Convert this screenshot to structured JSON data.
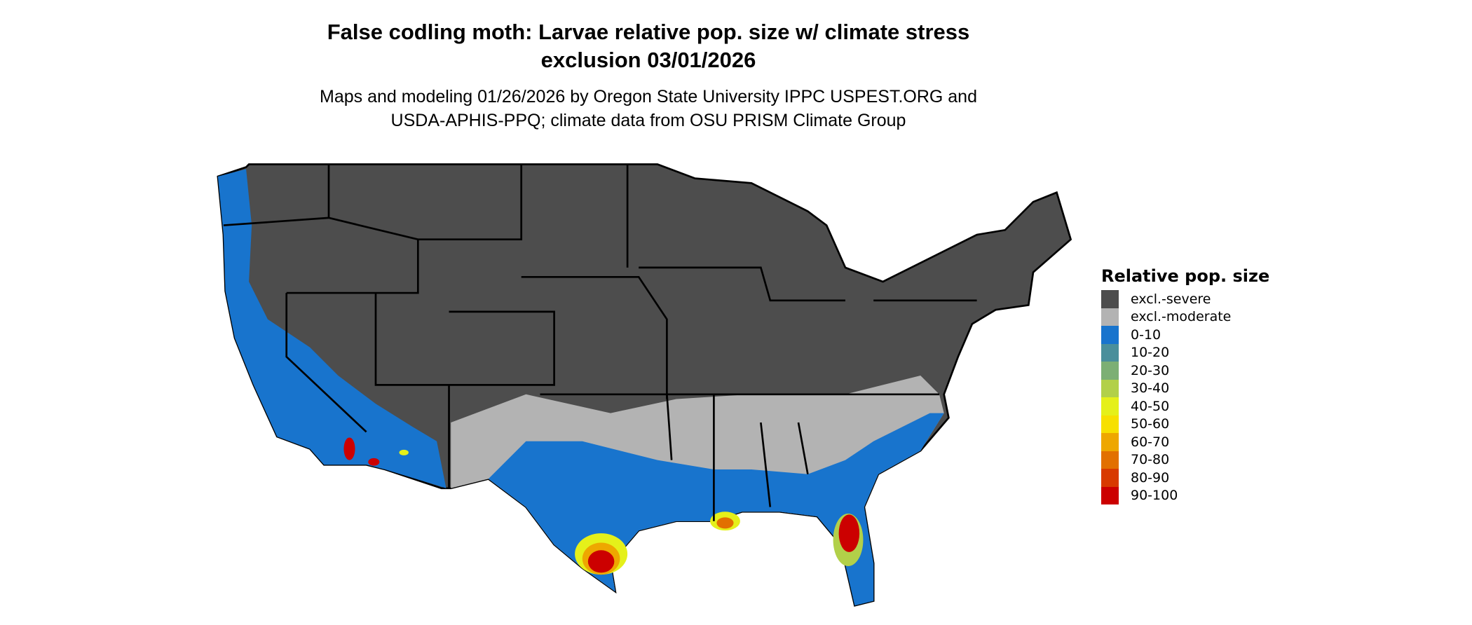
{
  "title_line1": "False codling moth: Larvae relative pop. size w/ climate stress",
  "title_line2": "exclusion 03/01/2026",
  "subtitle_line1": "Maps and modeling 01/26/2026 by Oregon State University IPPC USPEST.ORG and",
  "subtitle_line2": "USDA-APHIS-PPQ; climate data from OSU PRISM Climate Group",
  "chart_data": {
    "type": "map",
    "region": "contiguous United States",
    "legend": {
      "title": "Relative pop. size",
      "placement": "right",
      "items": [
        {
          "label": "excl.-severe",
          "color": "#4d4d4d"
        },
        {
          "label": "excl.-moderate",
          "color": "#b3b3b3"
        },
        {
          "label": "0-10",
          "color": "#1874cd"
        },
        {
          "label": "10-20",
          "color": "#4a8f9b"
        },
        {
          "label": "20-30",
          "color": "#7caf74"
        },
        {
          "label": "30-40",
          "color": "#b2d049"
        },
        {
          "label": "40-50",
          "color": "#e5f01a"
        },
        {
          "label": "50-60",
          "color": "#f7e000"
        },
        {
          "label": "60-70",
          "color": "#eea700"
        },
        {
          "label": "70-80",
          "color": "#e27000"
        },
        {
          "label": "80-90",
          "color": "#d83a00"
        },
        {
          "label": "90-100",
          "color": "#cc0000"
        }
      ]
    }
  }
}
